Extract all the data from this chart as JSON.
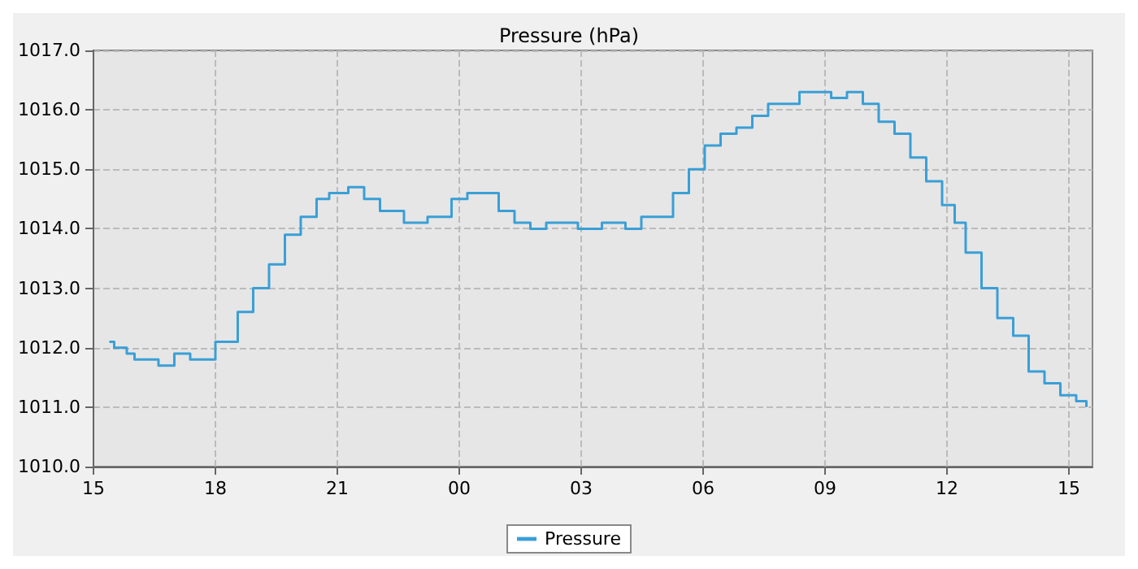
{
  "chart_data": {
    "type": "step",
    "title": "Pressure (hPa)",
    "x": [
      15.39,
      15.51,
      15.82,
      16.01,
      16.4,
      16.6,
      16.99,
      17.38,
      17.77,
      18.0,
      18.16,
      18.55,
      18.93,
      19.32,
      19.71,
      20.1,
      20.49,
      20.8,
      21.27,
      21.66,
      22.05,
      22.64,
      23.22,
      23.61,
      23.81,
      24.2,
      24.59,
      24.97,
      25.36,
      25.75,
      26.14,
      26.53,
      26.92,
      27.51,
      28.09,
      28.48,
      28.87,
      29.26,
      29.65,
      30.04,
      30.43,
      30.82,
      31.21,
      31.6,
      31.99,
      32.37,
      32.76,
      33.15,
      33.54,
      33.93,
      34.32,
      34.71,
      35.1,
      35.49,
      35.88,
      36.19,
      36.46,
      36.85,
      37.24,
      37.63,
      38.01,
      38.4,
      38.79,
      39.18,
      39.43
    ],
    "series": [
      {
        "name": "Pressure",
        "color": "#3a9fd6",
        "values": [
          1012.1,
          1012.0,
          1011.9,
          1011.8,
          1011.8,
          1011.7,
          1011.9,
          1011.8,
          1011.8,
          1012.1,
          1012.1,
          1012.6,
          1013.0,
          1013.4,
          1013.9,
          1014.2,
          1014.5,
          1014.6,
          1014.7,
          1014.5,
          1014.3,
          1014.1,
          1014.2,
          1014.2,
          1014.5,
          1014.6,
          1014.6,
          1014.3,
          1014.1,
          1014.0,
          1014.1,
          1014.1,
          1014.0,
          1014.1,
          1014.0,
          1014.2,
          1014.2,
          1014.6,
          1015.0,
          1015.4,
          1015.6,
          1015.7,
          1015.9,
          1016.1,
          1016.1,
          1016.3,
          1016.3,
          1016.2,
          1016.3,
          1016.1,
          1015.8,
          1015.6,
          1015.2,
          1014.8,
          1014.4,
          1014.1,
          1013.6,
          1013.0,
          1012.5,
          1012.2,
          1011.6,
          1011.4,
          1011.2,
          1011.1,
          1011.0
        ]
      }
    ],
    "xlim": [
      15,
      39.58
    ],
    "xticks": [
      {
        "value": 15,
        "label": "15"
      },
      {
        "value": 18,
        "label": "18"
      },
      {
        "value": 21,
        "label": "21"
      },
      {
        "value": 24,
        "label": "00"
      },
      {
        "value": 27,
        "label": "03"
      },
      {
        "value": 30,
        "label": "06"
      },
      {
        "value": 33,
        "label": "09"
      },
      {
        "value": 36,
        "label": "12"
      },
      {
        "value": 39,
        "label": "15"
      }
    ],
    "ylim": [
      1010,
      1017
    ],
    "yticks": [
      {
        "value": 1010,
        "label": "1010.0"
      },
      {
        "value": 1011,
        "label": "1011.0"
      },
      {
        "value": 1012,
        "label": "1012.0"
      },
      {
        "value": 1013,
        "label": "1013.0"
      },
      {
        "value": 1014,
        "label": "1014.0"
      },
      {
        "value": 1015,
        "label": "1015.0"
      },
      {
        "value": 1016,
        "label": "1016.0"
      },
      {
        "value": 1017,
        "label": "1017.0"
      }
    ],
    "grid": true,
    "legend": "bottom"
  }
}
